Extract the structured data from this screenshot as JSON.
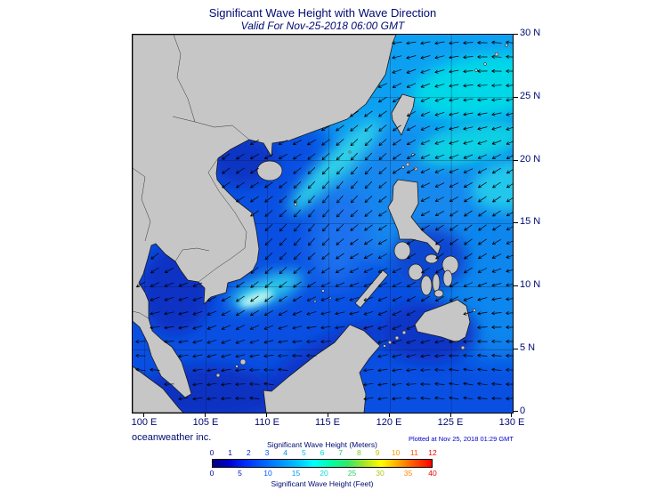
{
  "header": {
    "title": "Significant Wave Height with Wave Direction",
    "subtitle": "Valid For Nov-25-2018 06:00 GMT"
  },
  "colors": {
    "navy": "#000a70",
    "blue": "#0000cc"
  },
  "map": {
    "lat_labels": [
      "30 N",
      "25 N",
      "20 N",
      "15 N",
      "10 N",
      "5 N",
      "0"
    ],
    "lon_labels": [
      "100 E",
      "105 E",
      "110 E",
      "115 E",
      "120 E",
      "125 E",
      "130 E"
    ],
    "colors": {
      "sea_base": "#0950e2",
      "land": "#c6c6c6",
      "coast": "#1a1a1a",
      "arrow": "#000000",
      "grid": "#101028"
    }
  },
  "footer": {
    "credit": "oceanweather inc.",
    "plotted": "Plotted at Nov 25, 2018 01:29 GMT"
  },
  "legend": {
    "meters_title": "Significant Wave Height (Meters)",
    "feet_title": "Significant Wave Height (Feet)",
    "palette": [
      "#000080",
      "#0000cd",
      "#0030ff",
      "#0060ff",
      "#0090ff",
      "#00c0ff",
      "#00ffff",
      "#00ffa8",
      "#30e868",
      "#a8e428",
      "#ffff00",
      "#ffa800",
      "#ff5000",
      "#ff0000"
    ],
    "meters_ticks": [
      {
        "label": "0",
        "color": "#000a99"
      },
      {
        "label": "1",
        "color": "#0008cc"
      },
      {
        "label": "2",
        "color": "#0022ee"
      },
      {
        "label": "3",
        "color": "#0055ff"
      },
      {
        "label": "4",
        "color": "#0090f0"
      },
      {
        "label": "5",
        "color": "#00c0ee"
      },
      {
        "label": "6",
        "color": "#00ddcc"
      },
      {
        "label": "7",
        "color": "#22cc77"
      },
      {
        "label": "8",
        "color": "#77cc22"
      },
      {
        "label": "9",
        "color": "#c8c400"
      },
      {
        "label": "10",
        "color": "#ff9900"
      },
      {
        "label": "11",
        "color": "#ff5500"
      },
      {
        "label": "12",
        "color": "#ee0000"
      }
    ],
    "feet_ticks": [
      {
        "label": "0",
        "color": "#000a99"
      },
      {
        "label": "5",
        "color": "#0011cc"
      },
      {
        "label": "10",
        "color": "#0055ff"
      },
      {
        "label": "15",
        "color": "#00a0f0"
      },
      {
        "label": "20",
        "color": "#00ddd5"
      },
      {
        "label": "25",
        "color": "#33cc66"
      },
      {
        "label": "30",
        "color": "#b0c810"
      },
      {
        "label": "35",
        "color": "#ff8800"
      },
      {
        "label": "40",
        "color": "#ee0000"
      }
    ]
  }
}
